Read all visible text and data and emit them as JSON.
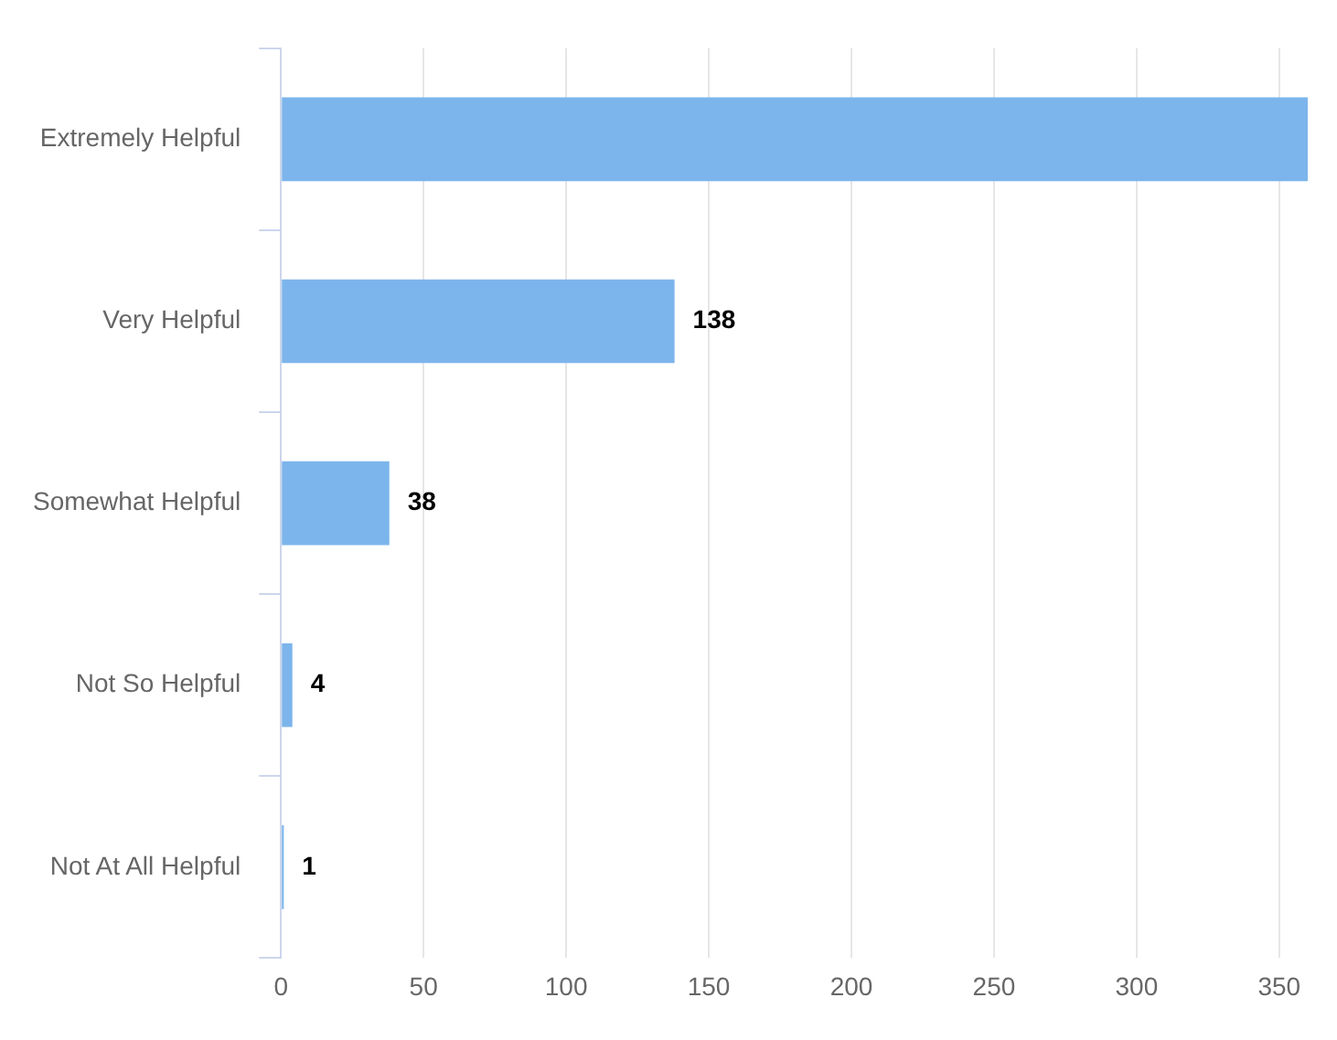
{
  "chart_data": {
    "type": "bar",
    "orientation": "horizontal",
    "categories": [
      "Extremely Helpful",
      "Very Helpful",
      "Somewhat Helpful",
      "Not So Helpful",
      "Not At All Helpful"
    ],
    "values": [
      360,
      138,
      38,
      4,
      1
    ],
    "value_labels": [
      null,
      "138",
      "38",
      "4",
      "1"
    ],
    "color": "#7cb5ec",
    "xlim": [
      0,
      360
    ],
    "xticks": [
      0,
      50,
      100,
      150,
      200,
      250,
      300,
      350
    ],
    "grid": "x",
    "legend": false
  }
}
